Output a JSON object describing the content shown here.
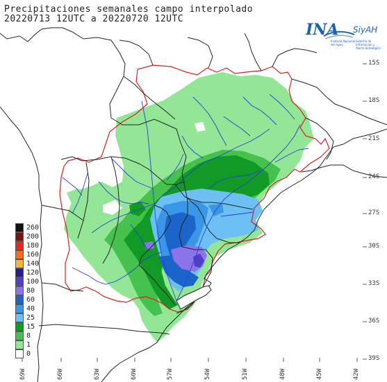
{
  "title": {
    "line1": "Precipitaciones semanales campo interpolado",
    "line2": "20220713 12UTC a 20220720 12UTC"
  },
  "logo": {
    "ina": "INA",
    "siyah": "SiyAH",
    "sub_left": "Instituto Nacional del Agua",
    "sub_right": "Sistema de Información y Alerta Hidrológico"
  },
  "legend": {
    "items": [
      {
        "label": "260",
        "color": "#111111"
      },
      {
        "label": "200",
        "color": "#7a1212"
      },
      {
        "label": "180",
        "color": "#e8261e"
      },
      {
        "label": "160",
        "color": "#f46d1f"
      },
      {
        "label": "140",
        "color": "#f8b53c"
      },
      {
        "label": "120",
        "color": "#241d8c"
      },
      {
        "label": "100",
        "color": "#4f3fc9"
      },
      {
        "label": "80",
        "color": "#8b73ea"
      },
      {
        "label": "60",
        "color": "#1b64c9"
      },
      {
        "label": "40",
        "color": "#3a96e6"
      },
      {
        "label": "25",
        "color": "#6cc0f3"
      },
      {
        "label": "15",
        "color": "#129a26"
      },
      {
        "label": "8",
        "color": "#45c24d"
      },
      {
        "label": "1",
        "color": "#93e695"
      },
      {
        "label": "0",
        "color": "#ffffff"
      }
    ]
  },
  "axes": {
    "lat_labels": [
      "15S",
      "18S",
      "21S",
      "24S",
      "27S",
      "30S",
      "33S",
      "36S",
      "39S"
    ],
    "lon_labels": [
      "66W",
      "63W",
      "60W",
      "57W",
      "54W",
      "51W",
      "48W",
      "45W",
      "42W",
      "69W"
    ]
  }
}
